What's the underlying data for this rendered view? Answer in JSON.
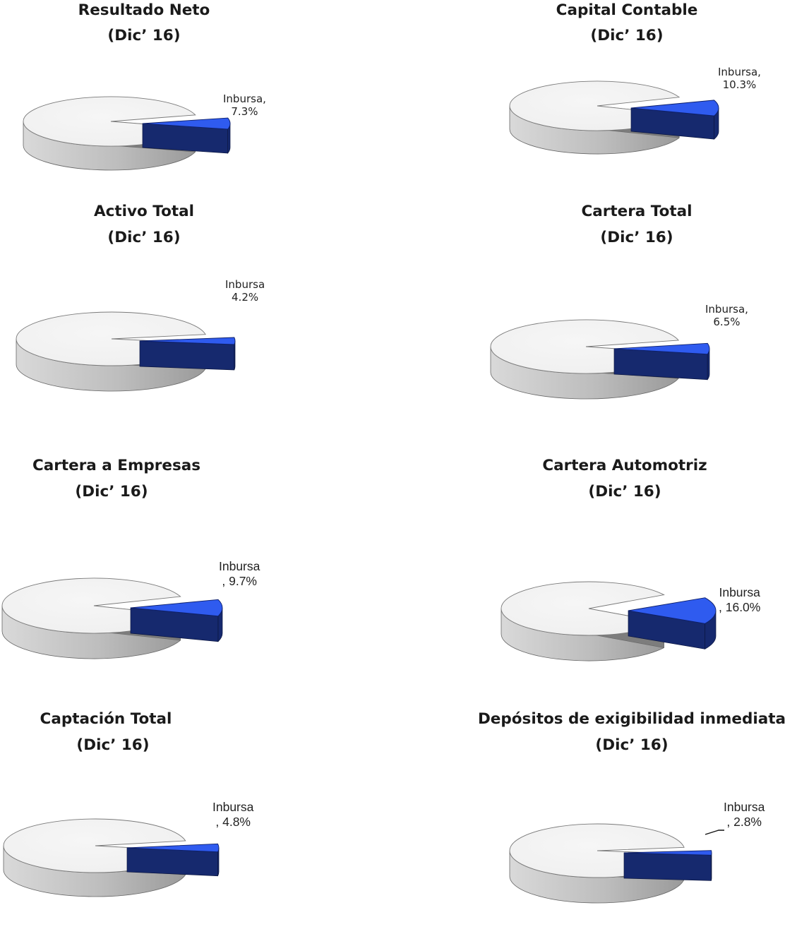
{
  "colors": {
    "market_top": "#efefef",
    "market_side": "#9a9a9a",
    "inbursa_top": "#2f5bef",
    "inbursa_side": "#16296e",
    "gap": "#7d7d7d"
  },
  "chart_data": [
    {
      "type": "pie",
      "title": "Resultado Neto",
      "subtitle": "(Dic’ 16)",
      "slices": [
        {
          "label": "Inbursa",
          "value": 7.3
        },
        {
          "label": "",
          "value": 92.7
        }
      ],
      "data_label_line1": "Inbursa,",
      "data_label_line2": "7.3%"
    },
    {
      "type": "pie",
      "title": "Capital Contable",
      "subtitle": "(Dic’ 16)",
      "slices": [
        {
          "label": "Inbursa",
          "value": 10.3
        },
        {
          "label": "",
          "value": 89.7
        }
      ],
      "data_label_line1": "Inbursa,",
      "data_label_line2": "10.3%"
    },
    {
      "type": "pie",
      "title": "Activo Total",
      "subtitle": "(Dic’ 16)",
      "slices": [
        {
          "label": "Inbursa",
          "value": 4.2
        },
        {
          "label": "",
          "value": 95.8
        }
      ],
      "data_label_line1": "Inbursa",
      "data_label_line2": "4.2%"
    },
    {
      "type": "pie",
      "title": "Cartera Total",
      "subtitle": "(Dic’ 16)",
      "slices": [
        {
          "label": "Inbursa",
          "value": 6.5
        },
        {
          "label": "",
          "value": 93.5
        }
      ],
      "data_label_line1": "Inbursa,",
      "data_label_line2": "6.5%"
    },
    {
      "type": "pie",
      "title": "Cartera a Empresas",
      "subtitle": "(Dic’ 16)",
      "slices": [
        {
          "label": "Inbursa",
          "value": 9.7
        },
        {
          "label": "",
          "value": 90.3
        }
      ],
      "data_label_line1": "Inbursa",
      "data_label_line2": ", 9.7%"
    },
    {
      "type": "pie",
      "title": "Cartera Automotriz",
      "subtitle": "(Dic’ 16)",
      "slices": [
        {
          "label": "Inbursa",
          "value": 16.0
        },
        {
          "label": "",
          "value": 84.0
        }
      ],
      "data_label_line1": "Inbursa",
      "data_label_line2": ", 16.0%"
    },
    {
      "type": "pie",
      "title": "Captación Total",
      "subtitle": "(Dic’ 16)",
      "slices": [
        {
          "label": "Inbursa",
          "value": 4.8
        },
        {
          "label": "",
          "value": 95.2
        }
      ],
      "data_label_line1": "Inbursa",
      "data_label_line2": ", 4.8%"
    },
    {
      "type": "pie",
      "title": "Depósitos de exigibilidad inmediata",
      "subtitle": "(Dic’ 16)",
      "slices": [
        {
          "label": "Inbursa",
          "value": 2.8
        },
        {
          "label": "",
          "value": 97.2
        }
      ],
      "data_label_line1": "Inbursa",
      "data_label_line2": ", 2.8%"
    }
  ]
}
